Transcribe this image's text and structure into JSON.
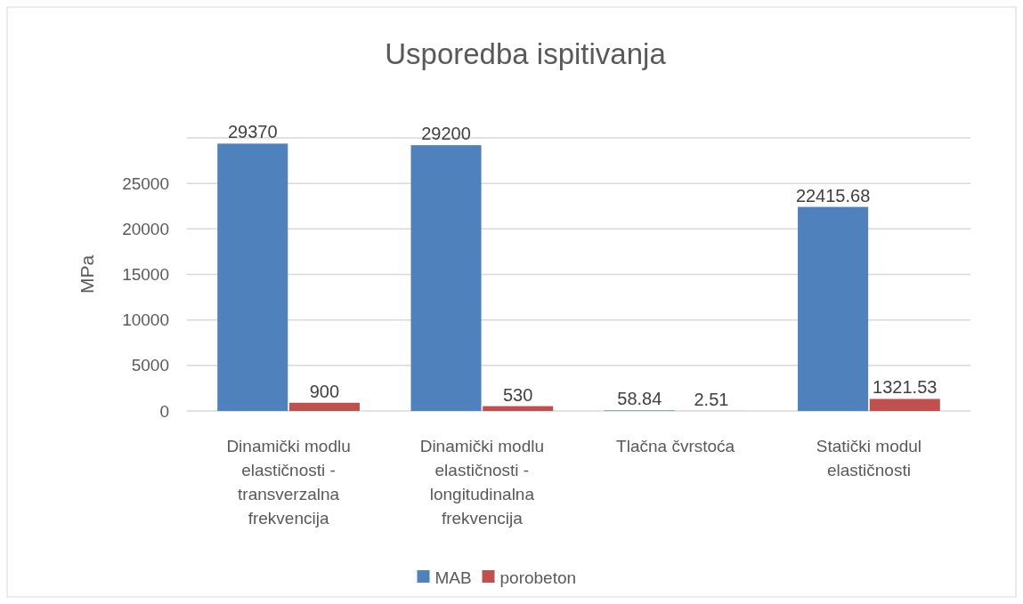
{
  "chart_data": {
    "type": "bar",
    "title": "Usporedba ispitivanja",
    "ylabel": "MPa",
    "categories": [
      "Dinamički modlu elastičnosti - transverzalna frekvencija",
      "Dinamički modlu elastičnosti - longitudinalna frekvencija",
      "Tlačna čvrstoća",
      "Statički modul elastičnosti"
    ],
    "series": [
      {
        "name": "MAB",
        "color": "#4f81bd",
        "values": [
          29370,
          29200,
          58.84,
          22415.68
        ]
      },
      {
        "name": "porobeton",
        "color": "#c0504d",
        "values": [
          900,
          530,
          2.51,
          1321.53
        ]
      }
    ],
    "ylim": [
      0,
      30000
    ],
    "yticks": [
      0,
      5000,
      10000,
      15000,
      20000,
      25000,
      {
        "value": 30000,
        "label": null
      }
    ],
    "grid": "y",
    "legend": "bottom",
    "data_labels": true
  }
}
